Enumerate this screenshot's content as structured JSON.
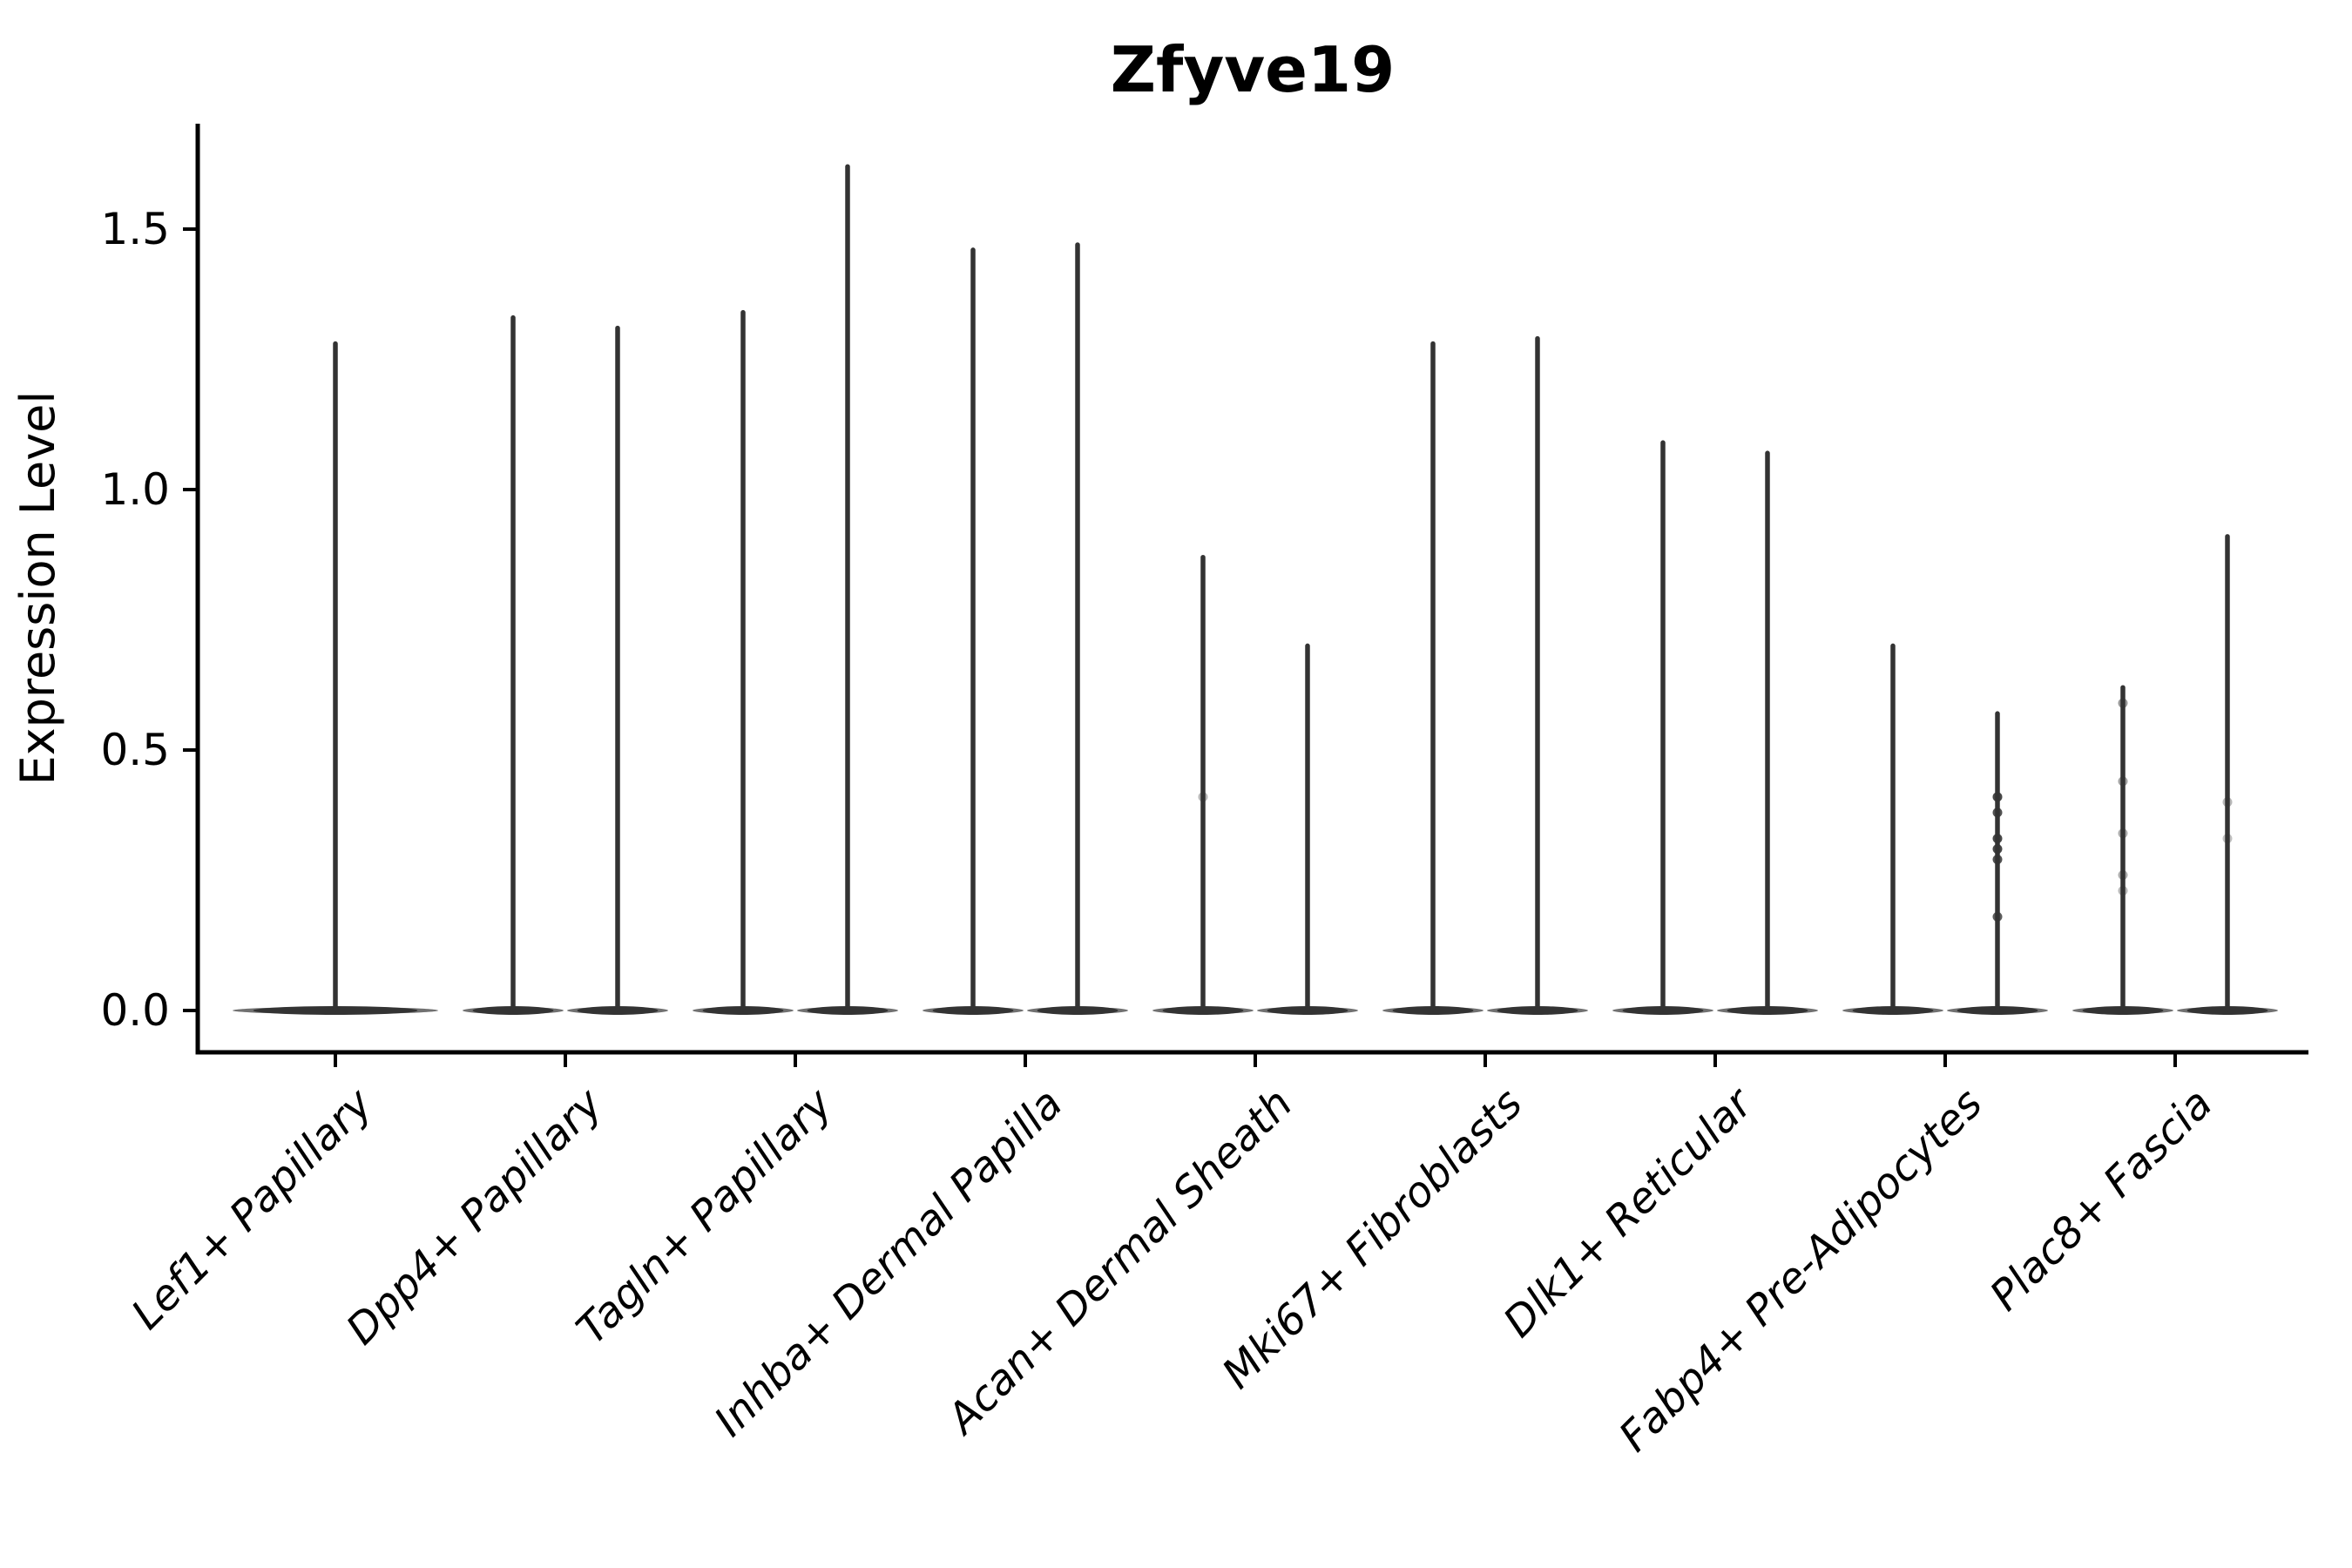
{
  "chart_data": {
    "type": "violin",
    "title": "Zfyve19",
    "ylabel": "Expression Level",
    "xlabel": "",
    "ylim": [
      -0.08,
      1.7
    ],
    "grid": false,
    "legend": null,
    "violin_min": 0.0,
    "yticks": [
      {
        "value": 0.0,
        "label": "0.0"
      },
      {
        "value": 0.5,
        "label": "0.5"
      },
      {
        "value": 1.0,
        "label": "1.0"
      },
      {
        "value": 1.5,
        "label": "1.5"
      }
    ],
    "categories": [
      "Lef1+ Papillary",
      "Dpp4+ Papillary",
      "Tagln+ Papillary",
      "Inhba+ Dermal Papilla",
      "Acan+ Dermal Sheath",
      "Mki67+ Fibroblasts",
      "Dlk1+ Reticular",
      "Fabp4+ Pre-Adipocytes",
      "Plac8+ Fascia"
    ],
    "groups": [
      {
        "label": "Lef1+ Papillary",
        "violin_maxima": [
          1.28
        ],
        "jitter_points": [
          []
        ]
      },
      {
        "label": "Dpp4+ Papillary",
        "violin_maxima": [
          1.33,
          1.31
        ],
        "jitter_points": [
          [],
          []
        ]
      },
      {
        "label": "Tagln+ Papillary",
        "violin_maxima": [
          1.34,
          1.62
        ],
        "jitter_points": [
          [],
          []
        ]
      },
      {
        "label": "Inhba+ Dermal Papilla",
        "violin_maxima": [
          1.46,
          1.47
        ],
        "jitter_points": [
          [],
          []
        ]
      },
      {
        "label": "Acan+ Dermal Sheath",
        "violin_maxima": [
          0.87,
          0.7
        ],
        "jitter_points": [
          [
            [
              0.41,
              0.35
            ]
          ],
          []
        ]
      },
      {
        "label": "Mki67+ Fibroblasts",
        "violin_maxima": [
          1.28,
          1.29
        ],
        "jitter_points": [
          [],
          []
        ]
      },
      {
        "label": "Dlk1+ Reticular",
        "violin_maxima": [
          1.09,
          1.07
        ],
        "jitter_points": [
          [],
          []
        ]
      },
      {
        "label": "Fabp4+ Pre-Adipocytes",
        "violin_maxima": [
          0.7,
          0.57
        ],
        "jitter_points": [
          [],
          [
            [
              0.41,
              0.9
            ],
            [
              0.38,
              0.85
            ],
            [
              0.33,
              0.9
            ],
            [
              0.31,
              0.9
            ],
            [
              0.29,
              0.85
            ],
            [
              0.18,
              0.8
            ]
          ]
        ]
      },
      {
        "label": "Plac8+ Fascia",
        "violin_maxima": [
          0.62,
          0.91
        ],
        "jitter_points": [
          [
            [
              0.59,
              0.5
            ],
            [
              0.44,
              0.45
            ],
            [
              0.34,
              0.4
            ],
            [
              0.26,
              0.4
            ],
            [
              0.23,
              0.35
            ]
          ],
          [
            [
              0.4,
              0.35
            ],
            [
              0.33,
              0.3
            ]
          ]
        ]
      }
    ],
    "colors": {
      "violin": "#333333",
      "violin_base_edge": "#4d4d4d",
      "axis": "#000000",
      "text": "#000000",
      "background": "#ffffff"
    }
  }
}
